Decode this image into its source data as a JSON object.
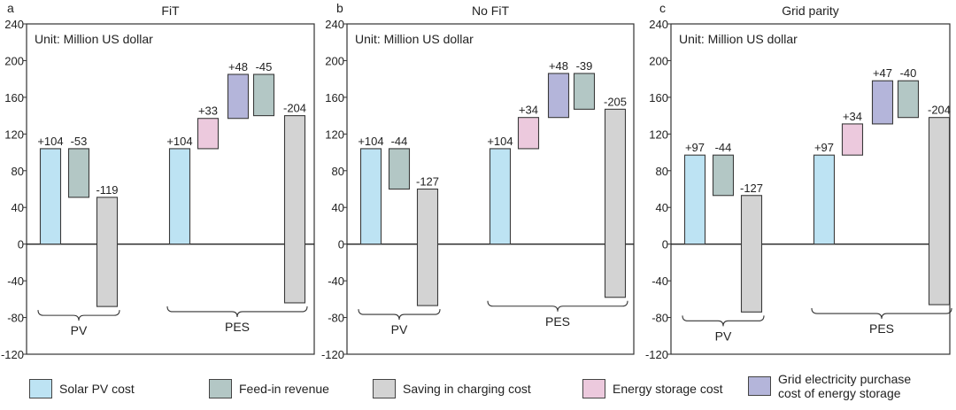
{
  "colors": {
    "solar_pv": "#bde3f3",
    "feed_in": "#b3c7c5",
    "saving": "#d3d3d3",
    "storage": "#ecc9dd",
    "grid": "#b4b5da"
  },
  "legend": [
    {
      "key": "solar_pv",
      "label": "Solar PV cost"
    },
    {
      "key": "feed_in",
      "label": "Feed-in revenue"
    },
    {
      "key": "saving",
      "label": "Saving in charging cost"
    },
    {
      "key": "storage",
      "label": "Energy storage cost"
    },
    {
      "key": "grid",
      "label_lines": [
        "Grid electricity purchase",
        "cost of energy storage"
      ]
    }
  ],
  "chart_data": [
    {
      "type": "waterfall",
      "panel_letter": "a",
      "title": "FiT",
      "unit_note": "Unit: Million US dollar",
      "ylim": [
        -120,
        240
      ],
      "yticks": [
        -120,
        -80,
        -40,
        0,
        40,
        80,
        120,
        160,
        200,
        240
      ],
      "groups": [
        {
          "label": "PV",
          "bars": [
            {
              "series": "solar_pv",
              "base": 0,
              "value": 104,
              "label": "+104"
            },
            {
              "series": "feed_in",
              "base": 104,
              "value": -53,
              "label": "-53"
            },
            {
              "series": "saving",
              "base": 51,
              "value": -119,
              "label": "-119"
            }
          ]
        },
        {
          "label": "PES",
          "bars": [
            {
              "series": "solar_pv",
              "base": 0,
              "value": 104,
              "label": "+104"
            },
            {
              "series": "storage",
              "base": 104,
              "value": 33,
              "label": "+33"
            },
            {
              "series": "grid",
              "base": 137,
              "value": 48,
              "label": "+48"
            },
            {
              "series": "feed_in",
              "base": 185,
              "value": -45,
              "label": "-45"
            },
            {
              "series": "saving",
              "base": 140,
              "value": -204,
              "label": "-204"
            }
          ]
        }
      ]
    },
    {
      "type": "waterfall",
      "panel_letter": "b",
      "title": "No FiT",
      "unit_note": "Unit: Million US dollar",
      "ylim": [
        -120,
        240
      ],
      "yticks": [
        -120,
        -80,
        -40,
        0,
        40,
        80,
        120,
        160,
        200,
        240
      ],
      "groups": [
        {
          "label": "PV",
          "bars": [
            {
              "series": "solar_pv",
              "base": 0,
              "value": 104,
              "label": "+104"
            },
            {
              "series": "feed_in",
              "base": 104,
              "value": -44,
              "label": "-44"
            },
            {
              "series": "saving",
              "base": 60,
              "value": -127,
              "label": "-127"
            }
          ]
        },
        {
          "label": "PES",
          "bars": [
            {
              "series": "solar_pv",
              "base": 0,
              "value": 104,
              "label": "+104"
            },
            {
              "series": "storage",
              "base": 104,
              "value": 34,
              "label": "+34"
            },
            {
              "series": "grid",
              "base": 138,
              "value": 48,
              "label": "+48"
            },
            {
              "series": "feed_in",
              "base": 186,
              "value": -39,
              "label": "-39"
            },
            {
              "series": "saving",
              "base": 147,
              "value": -205,
              "label": "-205"
            }
          ]
        }
      ]
    },
    {
      "type": "waterfall",
      "panel_letter": "c",
      "title": "Grid parity",
      "unit_note": "Unit: Million US dollar",
      "ylim": [
        -120,
        240
      ],
      "yticks": [
        -120,
        -80,
        -40,
        0,
        40,
        80,
        120,
        160,
        200,
        240
      ],
      "groups": [
        {
          "label": "PV",
          "bars": [
            {
              "series": "solar_pv",
              "base": 0,
              "value": 97,
              "label": "+97"
            },
            {
              "series": "feed_in",
              "base": 97,
              "value": -44,
              "label": "-44"
            },
            {
              "series": "saving",
              "base": 53,
              "value": -127,
              "label": "-127"
            }
          ]
        },
        {
          "label": "PES",
          "bars": [
            {
              "series": "solar_pv",
              "base": 0,
              "value": 97,
              "label": "+97"
            },
            {
              "series": "storage",
              "base": 97,
              "value": 34,
              "label": "+34"
            },
            {
              "series": "grid",
              "base": 131,
              "value": 47,
              "label": "+47"
            },
            {
              "series": "feed_in",
              "base": 178,
              "value": -40,
              "label": "-40"
            },
            {
              "series": "saving",
              "base": 138,
              "value": -204,
              "label": "-204"
            }
          ]
        }
      ]
    }
  ]
}
